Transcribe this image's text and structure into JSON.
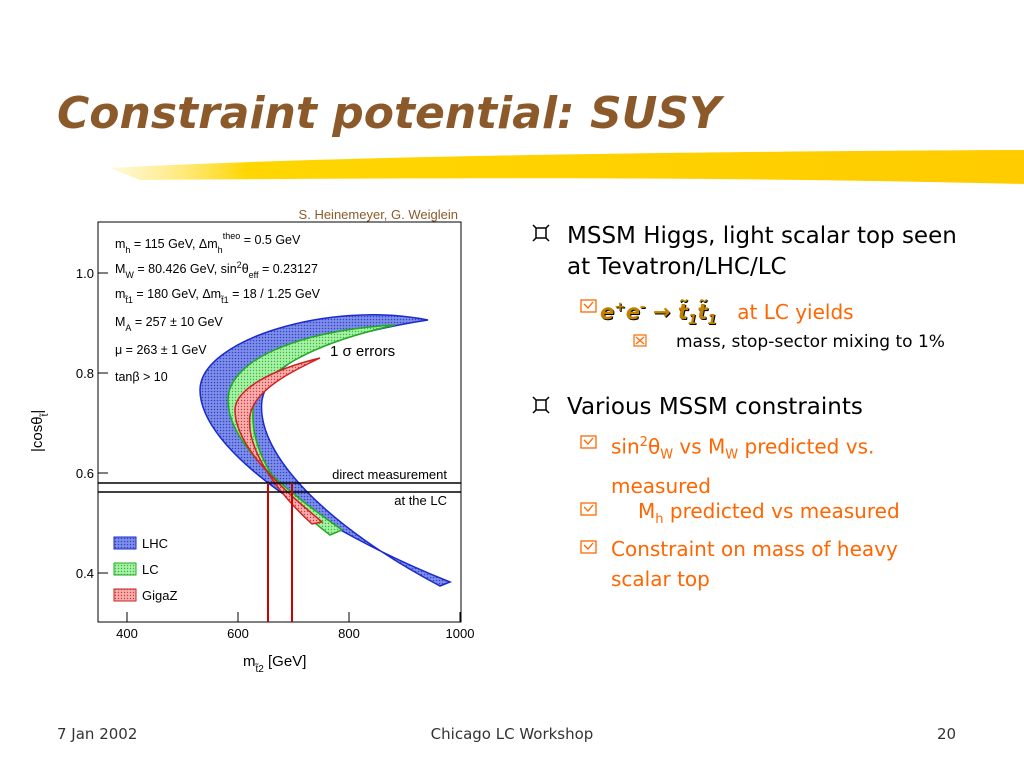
{
  "title": "Constraint potential: SUSY",
  "figure": {
    "credit": "S. Heinemeyer, G. Weiglein",
    "params": [
      [
        "m",
        "h",
        " = 115 GeV, Δm",
        "h",
        "theo",
        " = 0.5 GeV"
      ],
      [
        "M",
        "W",
        " = 80.426 GeV, sin",
        "2",
        "θ",
        "eff",
        " = 0.23127"
      ],
      [
        "m",
        "t̃1",
        " = 180 GeV, Δm",
        "t̃1",
        " = 18 / 1.25 GeV"
      ],
      [
        "M",
        "A",
        " = 257 ± 10 GeV"
      ],
      [
        "μ = 263 ± 1 GeV"
      ],
      [
        "tanβ > 10"
      ]
    ],
    "errors_label": "1 σ errors",
    "measurement_labels": [
      "direct measurement",
      "at the LC"
    ],
    "legend": [
      "LHC",
      "LC",
      "GigaZ"
    ],
    "xticks": [
      "400",
      "600",
      "800",
      "1000"
    ],
    "yticks": [
      "1.0",
      "0.8",
      "0.6",
      "0.4"
    ],
    "xlabel": [
      "m",
      "t̃2",
      " [GeV]"
    ],
    "ylabel": [
      "|cosθ",
      "t̃",
      "|"
    ]
  },
  "bullets": [
    {
      "text": "MSSM Higgs, light scalar top seen at Tevatron/LHC/LC",
      "sub": {
        "formula": [
          "e",
          "+",
          "e",
          "-",
          " → ",
          "t̃",
          "1",
          "t̃",
          "1"
        ],
        "text": "at LC yields",
        "sub": "mass, stop-sector mixing to 1%"
      }
    },
    {
      "text": "Various MSSM constraints",
      "sub": [
        [
          "sin",
          "2",
          "θ",
          "W",
          " vs M",
          "W",
          " predicted vs. measured"
        ],
        [
          "M",
          "h",
          " predicted vs measured"
        ],
        [
          "Constraint on mass of heavy scalar top"
        ]
      ]
    }
  ],
  "footer": {
    "date": "7 Jan 2002",
    "event": "Chicago LC Workshop",
    "page": "20"
  }
}
